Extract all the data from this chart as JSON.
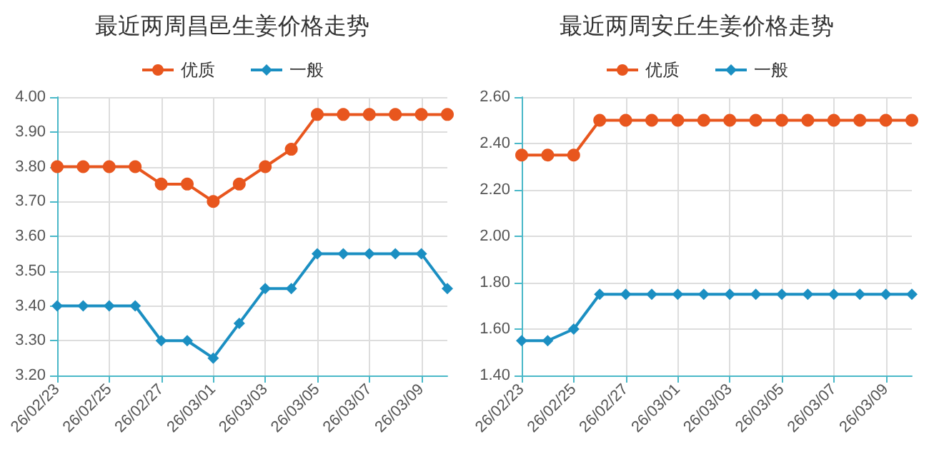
{
  "chart_data": [
    {
      "type": "line",
      "title": "最近两周昌邑生姜价格走势",
      "categories": [
        "26/02/23",
        null,
        "26/02/25",
        null,
        "26/02/27",
        null,
        "26/03/01",
        null,
        "26/03/03",
        null,
        "26/03/05",
        null,
        "26/03/07",
        null,
        "26/03/09",
        null
      ],
      "series": [
        {
          "name": "优质",
          "color": "#e8561e",
          "marker": "circle",
          "values": [
            3.8,
            3.8,
            3.8,
            3.8,
            3.75,
            3.75,
            3.7,
            3.75,
            3.8,
            3.85,
            3.95,
            3.95,
            3.95,
            3.95,
            3.95,
            3.95
          ]
        },
        {
          "name": "一般",
          "color": "#1b8fc2",
          "marker": "diamond",
          "values": [
            3.4,
            3.4,
            3.4,
            3.4,
            3.3,
            3.3,
            3.25,
            3.35,
            3.45,
            3.45,
            3.55,
            3.55,
            3.55,
            3.55,
            3.55,
            3.45
          ]
        }
      ],
      "ylim": [
        3.2,
        4.0
      ],
      "yticks": [
        {
          "value": 3.2,
          "label": "3.20"
        },
        {
          "value": 3.3,
          "label": "3.30"
        },
        {
          "value": 3.4,
          "label": "3.40"
        },
        {
          "value": 3.5,
          "label": "3.50"
        },
        {
          "value": 3.6,
          "label": "3.60"
        },
        {
          "value": 3.7,
          "label": "3.70"
        },
        {
          "value": 3.8,
          "label": "3.80"
        },
        {
          "value": 3.9,
          "label": "3.90"
        },
        {
          "value": 4.0,
          "label": "4.00"
        }
      ],
      "grid": true,
      "legend": "top"
    },
    {
      "type": "line",
      "title": "最近两周安丘生姜价格走势",
      "categories": [
        "26/02/23",
        null,
        "26/02/25",
        null,
        "26/02/27",
        null,
        "26/03/01",
        null,
        "26/03/03",
        null,
        "26/03/05",
        null,
        "26/03/07",
        null,
        "26/03/09",
        null
      ],
      "series": [
        {
          "name": "优质",
          "color": "#e8561e",
          "marker": "circle",
          "values": [
            2.35,
            2.35,
            2.35,
            2.5,
            2.5,
            2.5,
            2.5,
            2.5,
            2.5,
            2.5,
            2.5,
            2.5,
            2.5,
            2.5,
            2.5,
            2.5
          ]
        },
        {
          "name": "一般",
          "color": "#1b8fc2",
          "marker": "diamond",
          "values": [
            1.55,
            1.55,
            1.6,
            1.75,
            1.75,
            1.75,
            1.75,
            1.75,
            1.75,
            1.75,
            1.75,
            1.75,
            1.75,
            1.75,
            1.75,
            1.75
          ]
        }
      ],
      "ylim": [
        1.4,
        2.6
      ],
      "yticks": [
        {
          "value": 1.4,
          "label": "1.40"
        },
        {
          "value": 1.6,
          "label": "1.60"
        },
        {
          "value": 1.8,
          "label": "1.80"
        },
        {
          "value": 2.0,
          "label": "2.00"
        },
        {
          "value": 2.2,
          "label": "2.20"
        },
        {
          "value": 2.4,
          "label": "2.40"
        },
        {
          "value": 2.6,
          "label": "2.60"
        }
      ],
      "grid": true,
      "legend": "top"
    }
  ]
}
